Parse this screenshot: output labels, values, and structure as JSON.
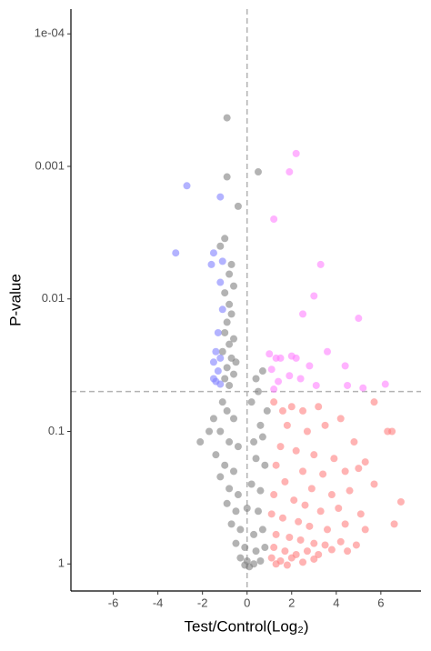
{
  "chart_data": {
    "type": "scatter",
    "x_label": "Test/Control(Log₂)",
    "y_label": "P-value",
    "xlim": [
      -7.9,
      7.8
    ],
    "ylim": [
      1.6,
      6.5e-05
    ],
    "ylog": true,
    "xticks": [
      -6,
      -4,
      -2,
      0,
      2,
      4,
      6
    ],
    "yticks": [
      1,
      0.1,
      0.01,
      0.001,
      {
        "value": 0.0001,
        "label": "1e-04"
      }
    ],
    "reference_lines": {
      "x": 0,
      "y": 0.05
    },
    "series": [
      {
        "color": "#808080",
        "x": [
          -0.9,
          0.5,
          -0.9,
          -0.4,
          -1.0,
          -1.2,
          -0.7,
          -0.8,
          -0.6,
          -1.0,
          -0.8,
          -0.7,
          -0.9,
          -1.0,
          -0.6,
          -0.8,
          -1.1,
          -0.7,
          -0.5,
          -0.9,
          -0.6,
          -1.0,
          -0.8,
          0.4,
          0.7,
          0.5,
          0.2,
          -1.1,
          -1.5,
          -0.9,
          -0.6,
          0.9,
          0.6,
          -2.1,
          -1.7,
          -1.2,
          -0.8,
          -0.4,
          0.3,
          0.7,
          -1.4,
          -1.0,
          -0.6,
          0.4,
          0.8,
          -1.2,
          -0.8,
          -0.4,
          0.2,
          0.6,
          -0.9,
          -0.5,
          0.0,
          0.5,
          -0.7,
          -0.3,
          0.3,
          0.7,
          -0.5,
          -0.1,
          0.4,
          0.8,
          -0.3,
          0.0,
          0.3,
          0.6,
          -0.1,
          0.1
        ],
        "y": [
          0.00043,
          0.0011,
          0.0012,
          0.002,
          0.0035,
          0.004,
          0.0055,
          0.0065,
          0.008,
          0.009,
          0.011,
          0.013,
          0.015,
          0.018,
          0.02,
          0.022,
          0.025,
          0.028,
          0.03,
          0.033,
          0.037,
          0.04,
          0.045,
          0.04,
          0.035,
          0.05,
          0.06,
          0.06,
          0.08,
          0.07,
          0.08,
          0.07,
          0.09,
          0.12,
          0.1,
          0.1,
          0.12,
          0.13,
          0.12,
          0.11,
          0.15,
          0.18,
          0.2,
          0.16,
          0.18,
          0.22,
          0.27,
          0.3,
          0.25,
          0.28,
          0.35,
          0.4,
          0.38,
          0.4,
          0.5,
          0.55,
          0.6,
          0.55,
          0.7,
          0.75,
          0.8,
          0.75,
          0.9,
          0.95,
          1.0,
          0.95,
          1.02,
          1.05
        ]
      },
      {
        "color": "#8080ff",
        "x": [
          -2.7,
          -3.2,
          -1.2,
          -1.5,
          -1.1,
          -1.6,
          -1.2,
          -1.1,
          -1.3,
          -1.4,
          -1.2,
          -1.5,
          -1.3,
          -1.4,
          -1.2,
          -1.5
        ],
        "y": [
          0.0014,
          0.0045,
          0.0017,
          0.0045,
          0.0052,
          0.0055,
          0.0075,
          0.012,
          0.018,
          0.025,
          0.028,
          0.03,
          0.035,
          0.042,
          0.044,
          0.04
        ]
      },
      {
        "color": "#ff80ff",
        "x": [
          2.2,
          1.9,
          1.2,
          3.3,
          3.0,
          2.5,
          5.0,
          1.0,
          1.3,
          1.5,
          2.0,
          2.2,
          3.6,
          2.8,
          4.4,
          1.1,
          1.9,
          2.4,
          3.1,
          4.5,
          5.2,
          6.2,
          1.4,
          1.2
        ],
        "y": [
          0.0008,
          0.0011,
          0.0025,
          0.0055,
          0.0095,
          0.013,
          0.014,
          0.026,
          0.028,
          0.028,
          0.027,
          0.028,
          0.025,
          0.032,
          0.032,
          0.034,
          0.038,
          0.04,
          0.045,
          0.045,
          0.047,
          0.044,
          0.042,
          0.048
        ]
      },
      {
        "color": "#ff8080",
        "x": [
          1.2,
          1.6,
          2.0,
          2.5,
          3.2,
          4.2,
          5.7,
          6.5,
          6.3,
          1.8,
          2.7,
          3.5,
          4.8,
          1.5,
          2.2,
          3.0,
          3.9,
          5.3,
          5.0,
          1.3,
          2.5,
          3.4,
          4.4,
          5.7,
          1.7,
          2.9,
          3.8,
          4.6,
          6.9,
          1.2,
          2.1,
          2.6,
          3.3,
          4.1,
          5.1,
          6.6,
          1.1,
          1.6,
          2.3,
          2.8,
          3.6,
          4.4,
          5.3,
          1.3,
          1.9,
          2.4,
          3.0,
          3.5,
          4.2,
          4.9,
          1.2,
          1.7,
          2.2,
          2.7,
          3.2,
          3.8,
          4.5,
          1.1,
          1.5,
          2.0,
          2.5,
          1.3,
          1.8,
          3.0
        ],
        "y": [
          0.06,
          0.07,
          0.065,
          0.07,
          0.065,
          0.08,
          0.06,
          0.1,
          0.1,
          0.09,
          0.1,
          0.09,
          0.12,
          0.13,
          0.14,
          0.15,
          0.16,
          0.17,
          0.19,
          0.18,
          0.2,
          0.21,
          0.2,
          0.25,
          0.24,
          0.27,
          0.3,
          0.28,
          0.34,
          0.3,
          0.33,
          0.36,
          0.4,
          0.38,
          0.42,
          0.5,
          0.42,
          0.45,
          0.48,
          0.52,
          0.55,
          0.5,
          0.55,
          0.6,
          0.63,
          0.66,
          0.7,
          0.72,
          0.68,
          0.72,
          0.75,
          0.8,
          0.85,
          0.8,
          0.85,
          0.78,
          0.8,
          0.9,
          0.95,
          0.9,
          0.97,
          1.0,
          1.02,
          0.92
        ]
      }
    ]
  }
}
